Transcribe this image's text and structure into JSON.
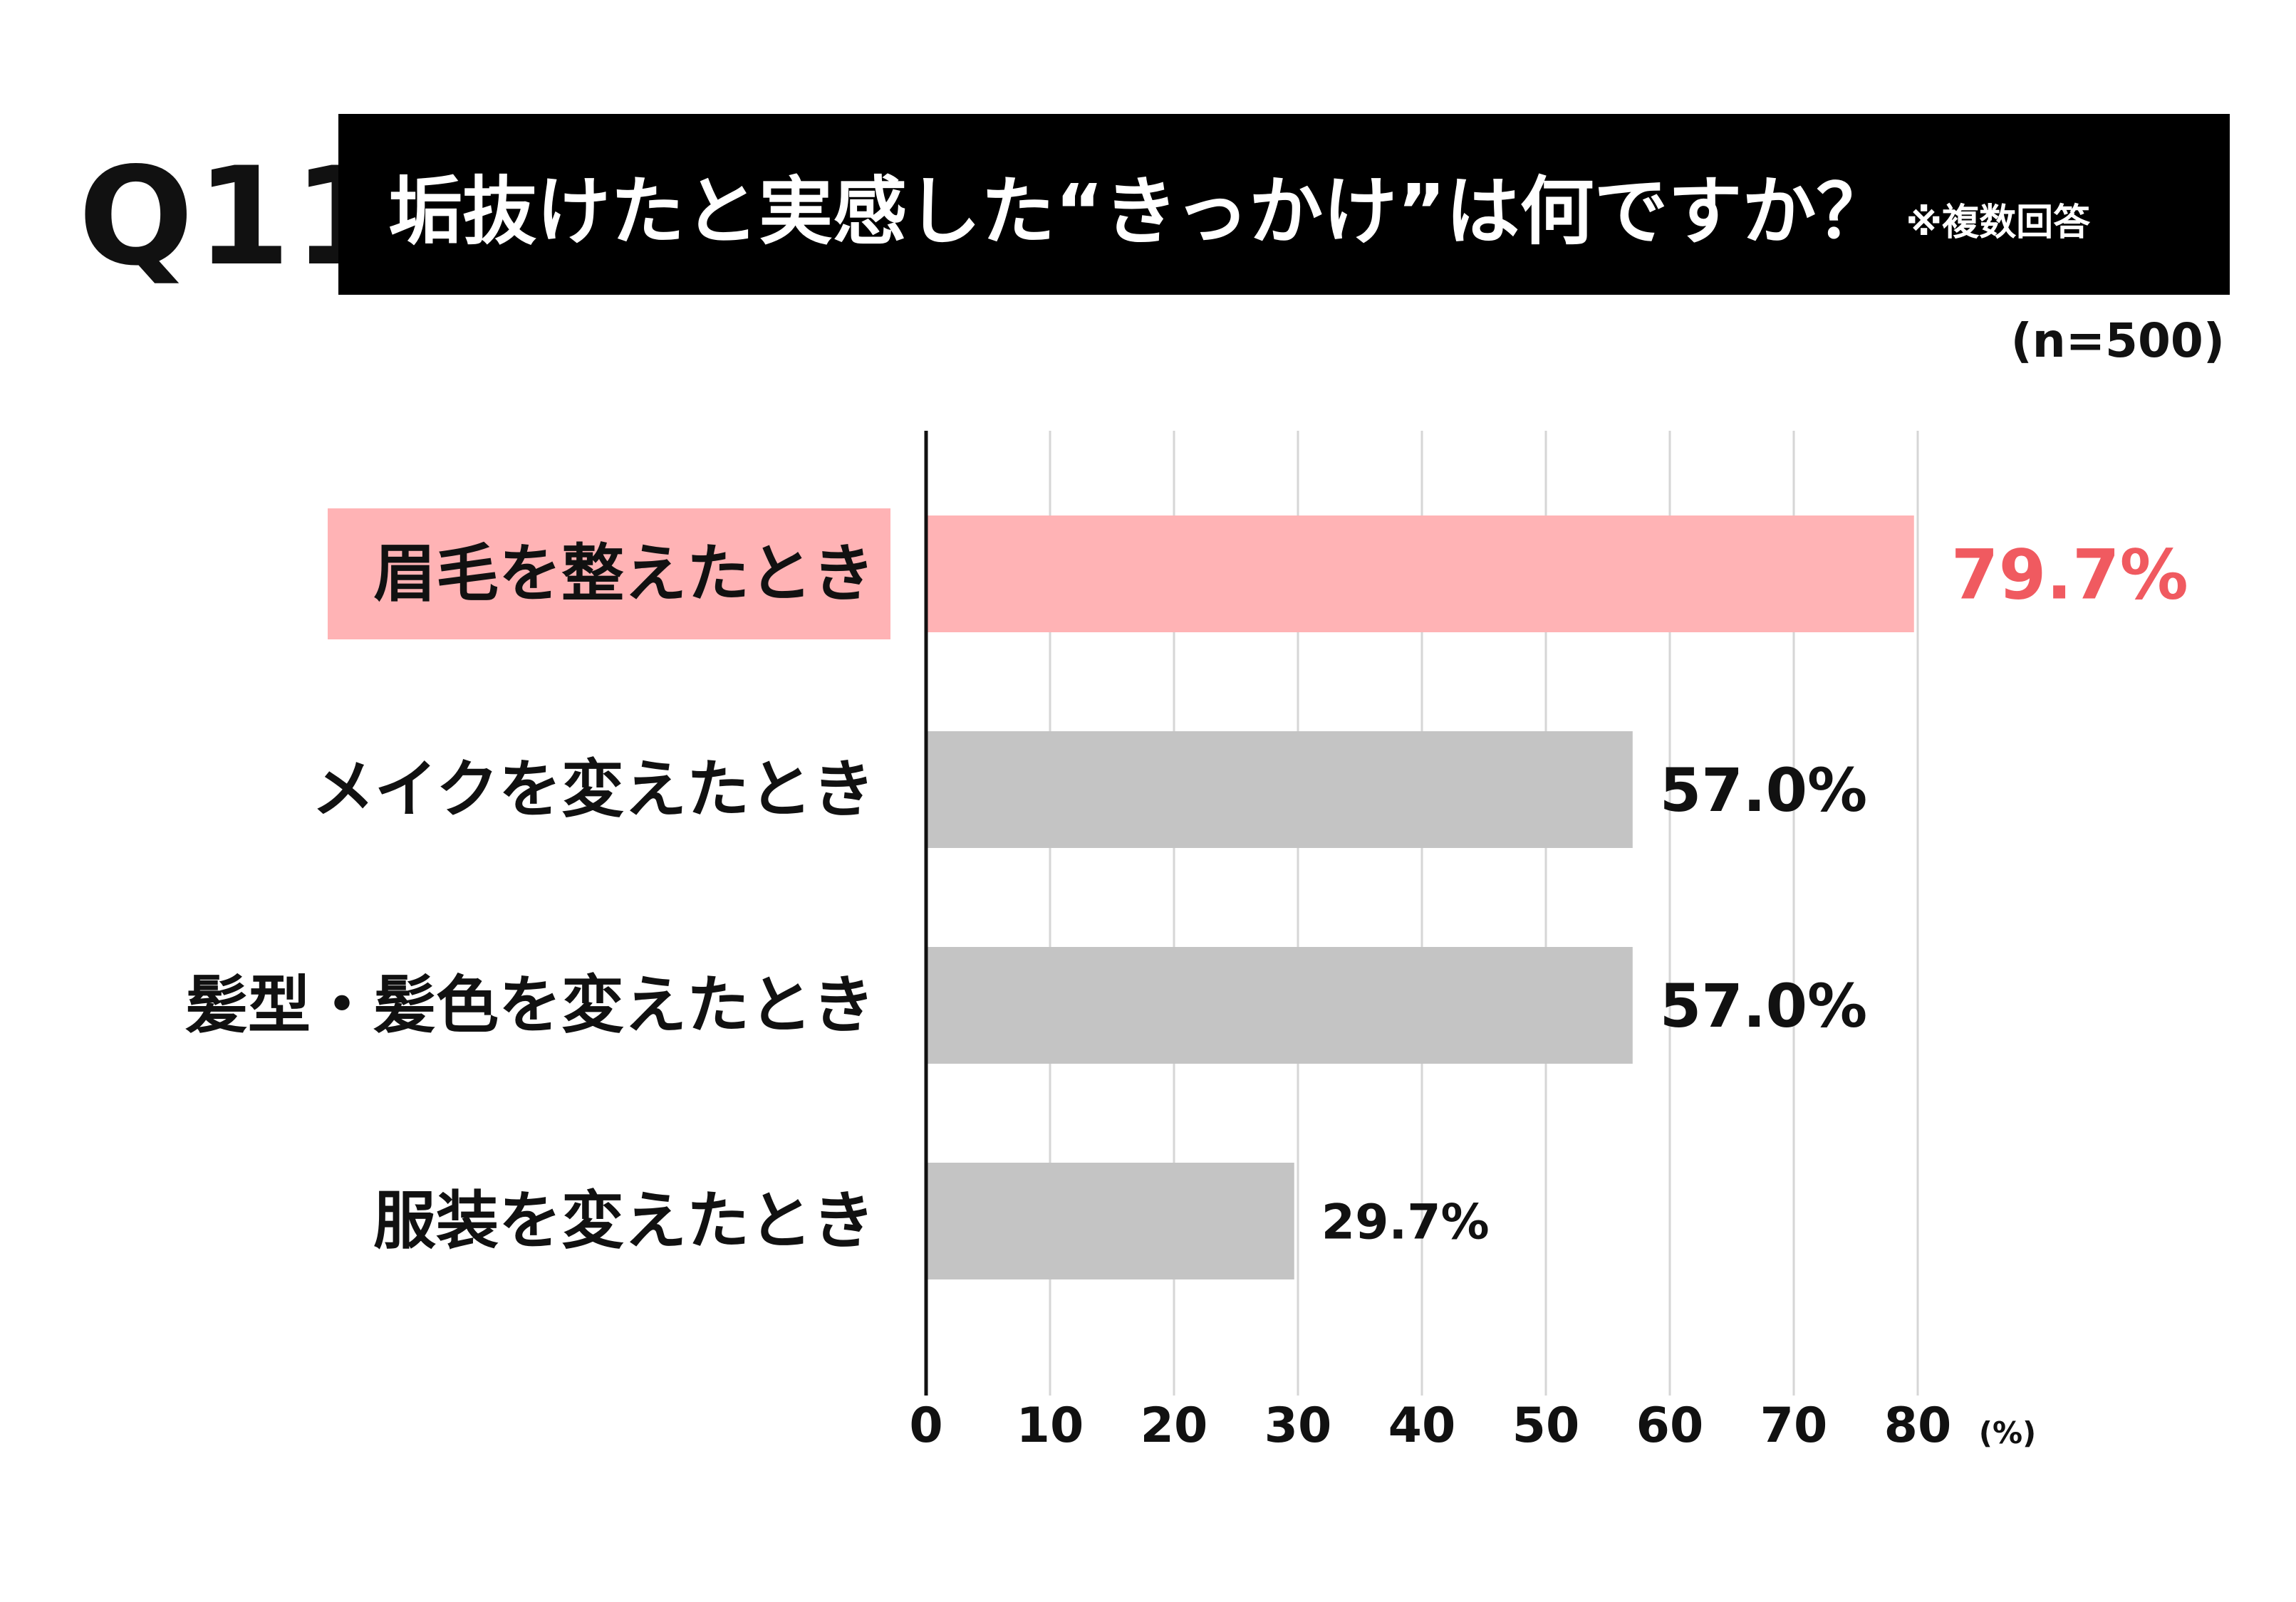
{
  "question": {
    "number": "Q11",
    "title": "垢抜けたと実感した“きっかけ”は何ですか？",
    "note": "※複数回答",
    "sample": "(n=500)"
  },
  "chart_data": {
    "type": "bar",
    "orientation": "horizontal",
    "categories": [
      "眉毛を整えたとき",
      "メイクを変えたとき",
      "髪型・髪色を変えたとき",
      "服装を変えたとき"
    ],
    "values": [
      79.7,
      57.0,
      57.0,
      29.7
    ],
    "value_labels": [
      "79.7%",
      "57.0%",
      "57.0%",
      "29.7%"
    ],
    "highlight_index": 0,
    "xlim": [
      0,
      80
    ],
    "xticks": [
      0,
      10,
      20,
      30,
      40,
      50,
      60,
      70,
      80
    ],
    "xlabel": "(%)",
    "grid": "vertical",
    "colors": {
      "highlight_bar": "#ffb3b5",
      "highlight_text": "#f05a60",
      "bar": "#c4c4c4",
      "grid": "#d6d6d6",
      "axis": "#111111",
      "text": "#111111"
    }
  }
}
